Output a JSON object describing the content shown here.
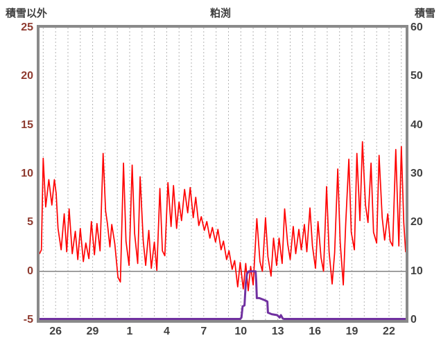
{
  "page": {
    "background": "#ffffff"
  },
  "header": {
    "left_label": "積雪以外",
    "title": "粕渕",
    "right_label": "積雪"
  },
  "chart_data": {
    "type": "line",
    "title": "粕渕",
    "legend": "none",
    "grid": {
      "vertical_dashed": true,
      "horizontal": false,
      "color": "#b3b3b3"
    },
    "frame_color": "#8a8a8a",
    "left_axis": {
      "label": "積雪以外",
      "range": [
        -5,
        25
      ],
      "ticks": [
        25,
        20,
        15,
        10,
        5,
        0,
        -5
      ],
      "color": "#8e3a2f"
    },
    "right_axis": {
      "label": "積雪",
      "range": [
        0,
        60
      ],
      "ticks": [
        60,
        50,
        40,
        30,
        20,
        10,
        0
      ],
      "color": "#404040"
    },
    "x_axis": {
      "domain_days": [
        0,
        29.65
      ],
      "tick_labels": [
        "26",
        "29",
        "1",
        "4",
        "7",
        "10",
        "13",
        "16",
        "19",
        "22"
      ],
      "tick_positions": [
        1.3,
        4.3,
        7.3,
        10.3,
        13.3,
        16.3,
        19.3,
        22.3,
        25.3,
        28.3
      ],
      "minor_gridline_start": 0.3,
      "minor_gridline_step": 1,
      "color": "#404040"
    },
    "zero_line": {
      "axis": "left",
      "value": 0,
      "color": "#808080"
    },
    "series": [
      {
        "name": "積雪以外",
        "axis": "left",
        "color": "#ff0000",
        "width": 1.7,
        "points": [
          [
            0.0,
            1.8
          ],
          [
            0.15,
            2.2
          ],
          [
            0.3,
            11.6
          ],
          [
            0.5,
            6.6
          ],
          [
            0.75,
            9.4
          ],
          [
            1.0,
            6.8
          ],
          [
            1.2,
            9.4
          ],
          [
            1.35,
            8.0
          ],
          [
            1.5,
            4.4
          ],
          [
            1.75,
            2.2
          ],
          [
            2.0,
            5.9
          ],
          [
            2.2,
            2.0
          ],
          [
            2.4,
            6.4
          ],
          [
            2.65,
            1.8
          ],
          [
            2.9,
            4.1
          ],
          [
            3.1,
            1.2
          ],
          [
            3.3,
            4.4
          ],
          [
            3.55,
            1.0
          ],
          [
            3.75,
            2.9
          ],
          [
            4.0,
            1.3
          ],
          [
            4.2,
            5.1
          ],
          [
            4.45,
            1.7
          ],
          [
            4.65,
            4.9
          ],
          [
            4.9,
            2.1
          ],
          [
            5.15,
            12.1
          ],
          [
            5.35,
            6.2
          ],
          [
            5.5,
            4.9
          ],
          [
            5.7,
            2.5
          ],
          [
            5.85,
            4.8
          ],
          [
            6.1,
            2.8
          ],
          [
            6.35,
            -0.6
          ],
          [
            6.55,
            -1.1
          ],
          [
            6.8,
            11.1
          ],
          [
            7.0,
            3.1
          ],
          [
            7.25,
            0.6
          ],
          [
            7.5,
            10.9
          ],
          [
            7.7,
            3.9
          ],
          [
            7.95,
            0.8
          ],
          [
            8.15,
            9.7
          ],
          [
            8.4,
            3.1
          ],
          [
            8.6,
            0.6
          ],
          [
            8.85,
            4.2
          ],
          [
            9.05,
            0.3
          ],
          [
            9.3,
            3.0
          ],
          [
            9.5,
            0.1
          ],
          [
            9.75,
            8.5
          ],
          [
            9.95,
            2.1
          ],
          [
            10.15,
            1.6
          ],
          [
            10.4,
            9.1
          ],
          [
            10.65,
            4.6
          ],
          [
            10.85,
            8.8
          ],
          [
            11.1,
            4.4
          ],
          [
            11.3,
            7.1
          ],
          [
            11.5,
            5.2
          ],
          [
            11.75,
            8.4
          ],
          [
            12.0,
            6.0
          ],
          [
            12.2,
            8.6
          ],
          [
            12.45,
            5.5
          ],
          [
            12.65,
            7.6
          ],
          [
            12.9,
            4.7
          ],
          [
            13.1,
            5.6
          ],
          [
            13.35,
            4.2
          ],
          [
            13.55,
            5.1
          ],
          [
            13.8,
            3.4
          ],
          [
            14.0,
            4.5
          ],
          [
            14.25,
            3.0
          ],
          [
            14.45,
            4.3
          ],
          [
            14.7,
            2.2
          ],
          [
            14.9,
            3.1
          ],
          [
            15.15,
            1.2
          ],
          [
            15.35,
            2.1
          ],
          [
            15.6,
            0.2
          ],
          [
            15.8,
            1.1
          ],
          [
            16.05,
            -1.6
          ],
          [
            16.25,
            0.9
          ],
          [
            16.5,
            -1.8
          ],
          [
            16.7,
            0.8
          ],
          [
            16.9,
            -2.0
          ],
          [
            17.1,
            0.5
          ],
          [
            17.3,
            -1.4
          ],
          [
            17.6,
            5.4
          ],
          [
            17.85,
            1.0
          ],
          [
            18.05,
            0.0
          ],
          [
            18.3,
            5.5
          ],
          [
            18.5,
            1.5
          ],
          [
            18.75,
            -0.5
          ],
          [
            18.95,
            3.4
          ],
          [
            19.2,
            0.6
          ],
          [
            19.4,
            3.4
          ],
          [
            19.65,
            0.8
          ],
          [
            19.85,
            6.4
          ],
          [
            20.1,
            2.8
          ],
          [
            20.3,
            1.2
          ],
          [
            20.55,
            4.6
          ],
          [
            20.75,
            1.8
          ],
          [
            21.0,
            4.3
          ],
          [
            21.2,
            2.2
          ],
          [
            21.45,
            4.8
          ],
          [
            21.65,
            2.0
          ],
          [
            21.9,
            6.5
          ],
          [
            22.1,
            2.6
          ],
          [
            22.35,
            0.3
          ],
          [
            22.55,
            5.1
          ],
          [
            22.8,
            1.4
          ],
          [
            23.0,
            0.0
          ],
          [
            23.25,
            8.7
          ],
          [
            23.45,
            2.0
          ],
          [
            23.7,
            -1.3
          ],
          [
            23.9,
            1.9
          ],
          [
            24.15,
            10.5
          ],
          [
            24.35,
            3.0
          ],
          [
            24.6,
            -1.4
          ],
          [
            24.8,
            4.9
          ],
          [
            25.05,
            11.5
          ],
          [
            25.25,
            4.0
          ],
          [
            25.5,
            2.2
          ],
          [
            25.7,
            12.1
          ],
          [
            25.95,
            5.2
          ],
          [
            26.15,
            13.3
          ],
          [
            26.4,
            6.8
          ],
          [
            26.6,
            5.0
          ],
          [
            26.85,
            11.1
          ],
          [
            27.05,
            4.0
          ],
          [
            27.3,
            2.9
          ],
          [
            27.5,
            11.9
          ],
          [
            27.75,
            5.5
          ],
          [
            27.95,
            3.2
          ],
          [
            28.2,
            5.9
          ],
          [
            28.4,
            3.1
          ],
          [
            28.6,
            2.6
          ],
          [
            28.85,
            12.5
          ],
          [
            29.1,
            2.6
          ],
          [
            29.3,
            12.8
          ],
          [
            29.5,
            5.0
          ],
          [
            29.65,
            2.0
          ]
        ]
      },
      {
        "name": "積雪",
        "axis": "right",
        "color": "#7030a0",
        "width": 3,
        "points": [
          [
            0.0,
            0
          ],
          [
            16.25,
            0
          ],
          [
            16.35,
            0.5
          ],
          [
            16.45,
            2.8
          ],
          [
            16.6,
            3.0
          ],
          [
            16.7,
            7.5
          ],
          [
            16.8,
            9.5
          ],
          [
            16.95,
            10.0
          ],
          [
            17.5,
            10.0
          ],
          [
            17.55,
            8.0
          ],
          [
            17.6,
            4.5
          ],
          [
            17.8,
            4.5
          ],
          [
            18.3,
            4.0
          ],
          [
            18.45,
            3.8
          ],
          [
            18.5,
            1.5
          ],
          [
            18.8,
            1.2
          ],
          [
            19.25,
            1.0
          ],
          [
            19.45,
            0.5
          ],
          [
            19.55,
            1.0
          ],
          [
            19.7,
            0.3
          ],
          [
            19.8,
            0.0
          ],
          [
            29.65,
            0.0
          ]
        ]
      }
    ]
  }
}
